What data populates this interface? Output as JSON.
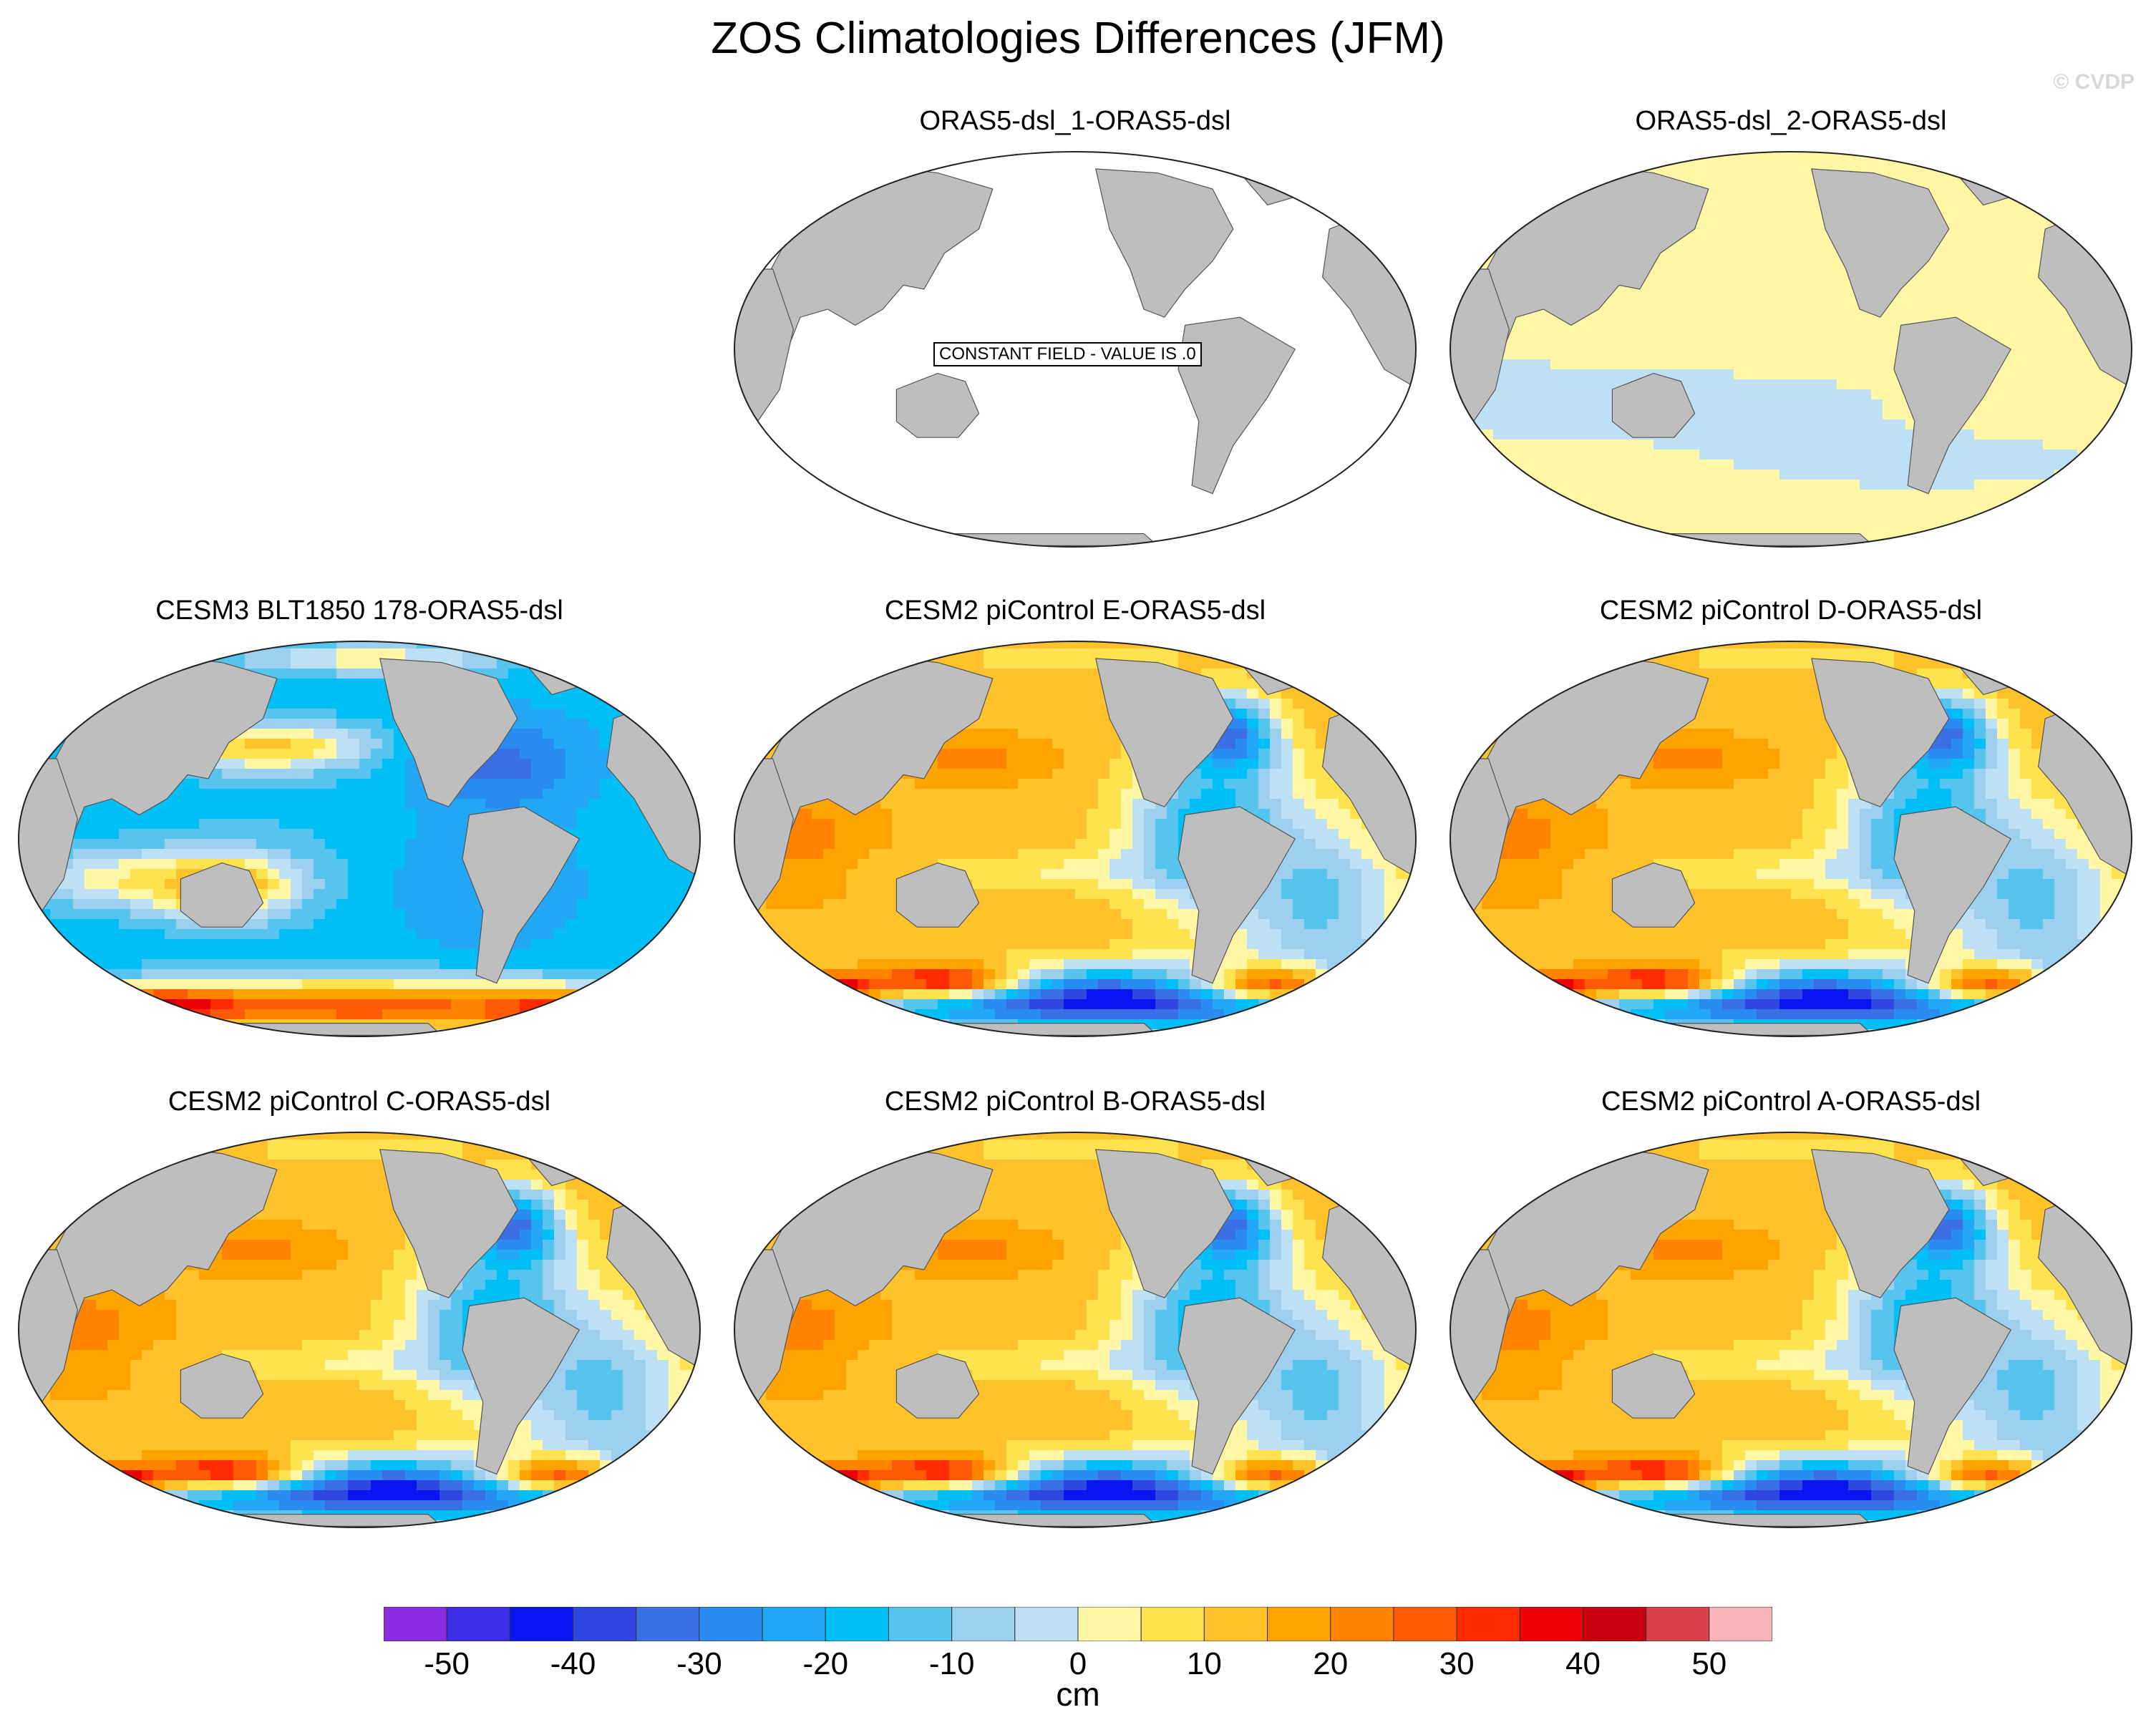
{
  "title": "ZOS Climatologies Differences (JFM)",
  "watermark": "© CVDP",
  "panels": [
    {
      "title": "ORAS5-dsl_1-ORAS5-dsl",
      "pattern": "constant",
      "note": "CONSTANT FIELD - VALUE IS .0"
    },
    {
      "title": "ORAS5-dsl_2-ORAS5-dsl",
      "pattern": "near-zero"
    },
    {
      "title": "CESM3 BLT1850 178-ORAS5-dsl",
      "pattern": "cesm3"
    },
    {
      "title": "CESM2 piControl E-ORAS5-dsl",
      "pattern": "cesm2"
    },
    {
      "title": "CESM2 piControl D-ORAS5-dsl",
      "pattern": "cesm2"
    },
    {
      "title": "CESM2 piControl C-ORAS5-dsl",
      "pattern": "cesm2"
    },
    {
      "title": "CESM2 piControl B-ORAS5-dsl",
      "pattern": "cesm2"
    },
    {
      "title": "CESM2 piControl A-ORAS5-dsl",
      "pattern": "cesm2"
    }
  ],
  "chart_data": {
    "type": "heatmap",
    "projection": "Robinson (Pacific-centered)",
    "season": "JFM",
    "variable": "ZOS",
    "colorbar": {
      "units": "cm",
      "levels": [
        -55,
        -50,
        -45,
        -40,
        -35,
        -30,
        -25,
        -20,
        -15,
        -10,
        -5,
        0,
        5,
        10,
        15,
        20,
        25,
        30,
        35,
        40,
        45,
        50,
        55
      ],
      "colors": [
        "#8a2be2",
        "#3a2ee8",
        "#0a14f0",
        "#2f47e0",
        "#3a6fe6",
        "#2a8bf2",
        "#22a6f6",
        "#00bff7",
        "#55c4ee",
        "#9dcfee",
        "#bee0f4",
        "#fff7a6",
        "#ffe24f",
        "#ffc22a",
        "#ffa300",
        "#ff8200",
        "#ff5a05",
        "#ff2a00",
        "#eb0008",
        "#c90010",
        "#d9404a",
        "#f8b4b8"
      ],
      "tick_labels": [
        "-50",
        "-40",
        "-30",
        "-20",
        "-10",
        "0",
        "10",
        "20",
        "30",
        "40",
        "50"
      ],
      "tick_values": [
        -50,
        -40,
        -30,
        -20,
        -10,
        0,
        10,
        20,
        30,
        40,
        50
      ]
    },
    "regions": {
      "constant": {
        "ocean": null
      },
      "near-zero": {
        "background": 3,
        "blobs": [
          [
            0.22,
            0.62,
            0.5,
            0.12,
            -3
          ],
          [
            0.55,
            0.45,
            0.4,
            0.1,
            3
          ],
          [
            0.3,
            0.35,
            0.3,
            0.09,
            3
          ],
          [
            0.72,
            0.25,
            0.2,
            0.1,
            3
          ],
          [
            0.62,
            0.78,
            0.35,
            0.08,
            -3
          ],
          [
            0.2,
            0.85,
            0.3,
            0.08,
            3
          ]
        ]
      },
      "cesm3": {
        "background": -18,
        "blobs": [
          [
            0.5,
            0.5,
            0.38,
            0.22,
            -15
          ],
          [
            0.37,
            0.27,
            0.15,
            0.06,
            12
          ],
          [
            0.7,
            0.32,
            0.12,
            0.12,
            -33
          ],
          [
            0.68,
            0.6,
            0.15,
            0.18,
            -25
          ],
          [
            0.18,
            0.6,
            0.18,
            0.07,
            4
          ],
          [
            0.3,
            0.62,
            0.1,
            0.08,
            18
          ],
          [
            0.5,
            0.92,
            0.48,
            0.07,
            28
          ],
          [
            0.22,
            0.92,
            0.1,
            0.04,
            42
          ],
          [
            0.8,
            0.93,
            0.1,
            0.04,
            40
          ],
          [
            0.52,
            0.05,
            0.2,
            0.04,
            3
          ]
        ]
      },
      "cesm2": {
        "background": 14,
        "blobs": [
          [
            0.48,
            0.5,
            0.3,
            0.2,
            14
          ],
          [
            0.35,
            0.3,
            0.1,
            0.05,
            22
          ],
          [
            0.1,
            0.5,
            0.1,
            0.12,
            22
          ],
          [
            0.55,
            0.58,
            0.28,
            0.05,
            4
          ],
          [
            0.72,
            0.25,
            0.07,
            0.1,
            -38
          ],
          [
            0.7,
            0.48,
            0.12,
            0.2,
            -22
          ],
          [
            0.85,
            0.65,
            0.12,
            0.2,
            -12
          ],
          [
            0.55,
            0.9,
            0.45,
            0.08,
            -45
          ],
          [
            0.3,
            0.85,
            0.13,
            0.05,
            34
          ],
          [
            0.16,
            0.87,
            0.07,
            0.04,
            38
          ],
          [
            0.82,
            0.86,
            0.14,
            0.05,
            32
          ],
          [
            0.5,
            0.05,
            0.18,
            0.04,
            6
          ],
          [
            0.95,
            0.86,
            0.1,
            0.1,
            -20
          ]
        ]
      }
    }
  }
}
